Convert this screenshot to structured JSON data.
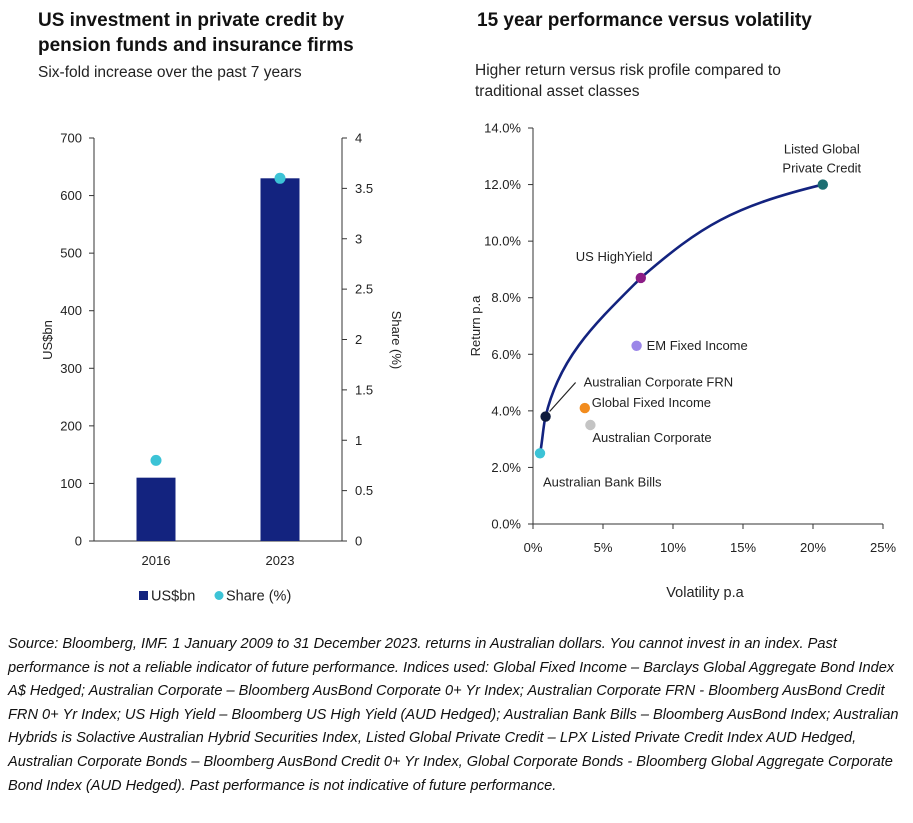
{
  "left_panel": {
    "title_line1": "US investment in private credit by",
    "title_line2": "pension funds and insurance firms",
    "subtitle": "Six-fold increase over the past 7 years"
  },
  "right_panel": {
    "title": "15 year performance versus volatility",
    "subtitle_line1": "Higher return versus risk profile compared to",
    "subtitle_line2": "traditional asset classes"
  },
  "footnote": "Source: Bloomberg, IMF. 1 January 2009 to 31 December 2023. returns in Australian dollars. You cannot invest in an index. Past performance is not a reliable indicator of future performance. Indices used: Global Fixed Income – Barclays Global Aggregate Bond Index A$ Hedged; Australian Corporate – Bloomberg AusBond Corporate 0+ Yr Index; Australian Corporate FRN - Bloomberg AusBond Credit FRN 0+ Yr Index; US High Yield – Bloomberg US High Yield (AUD Hedged); Australian Bank Bills – Bloomberg AusBond Index; Australian Hybrids is Solactive Australian Hybrid Securities Index, Listed Global Private Credit – LPX Listed Private Credit Index AUD Hedged, Australian Corporate Bonds – Bloomberg AusBond Credit 0+ Yr Index, Global Corporate Bonds - Bloomberg Global Aggregate Corporate Bond Index (AUD Hedged). Past performance is not indicative of future performance.",
  "chart_data": [
    {
      "type": "bar",
      "categories": [
        "2016",
        "2023"
      ],
      "series": [
        {
          "name": "US$bn",
          "kind": "bar",
          "axis": "left",
          "values": [
            110,
            630
          ],
          "color": "#13237f"
        },
        {
          "name": "Share (%)",
          "kind": "marker",
          "axis": "right",
          "values": [
            0.8,
            3.6
          ],
          "color": "#3cc3d6"
        }
      ],
      "ylabel": "US$bn",
      "ylabel_right": "Share (%)",
      "ylim": [
        0,
        700
      ],
      "ylim_right": [
        0,
        4
      ],
      "yticks": [
        "0",
        "100",
        "200",
        "300",
        "400",
        "500",
        "600",
        "700"
      ],
      "yticks_right": [
        "0",
        "0.5",
        "1",
        "1.5",
        "2",
        "2.5",
        "3",
        "3.5",
        "4"
      ],
      "legend_position": "bottom",
      "grid": false
    },
    {
      "type": "scatter",
      "xlabel": "Volatility p.a",
      "ylabel": "Return p.a",
      "xlim": [
        0,
        25
      ],
      "ylim": [
        0,
        14
      ],
      "xticks": [
        "0%",
        "5%",
        "10%",
        "15%",
        "20%",
        "25%"
      ],
      "yticks": [
        "0.0%",
        "2.0%",
        "4.0%",
        "6.0%",
        "8.0%",
        "10.0%",
        "12.0%",
        "14.0%"
      ],
      "grid": false,
      "points": [
        {
          "label": "Australian Bank Bills",
          "x": 0.5,
          "y": 2.5,
          "color": "#3cc3d6"
        },
        {
          "label": "Australian Corporate FRN",
          "x": 0.9,
          "y": 3.8,
          "color": "#0e1b3d"
        },
        {
          "label": "Global Fixed Income",
          "x": 3.7,
          "y": 4.1,
          "color": "#f28c1e"
        },
        {
          "label": "Australian Corporate",
          "x": 4.1,
          "y": 3.5,
          "color": "#c4c4c4"
        },
        {
          "label": "EM Fixed Income",
          "x": 7.4,
          "y": 6.3,
          "color": "#9b86e8"
        },
        {
          "label": "US HighYield",
          "x": 7.7,
          "y": 8.7,
          "color": "#8c1d86"
        },
        {
          "label": "Listed Global Private Credit",
          "x": 20.7,
          "y": 12.0,
          "color": "#1c6e72"
        }
      ],
      "frontier_line": {
        "color": "#13237f",
        "passes_through": [
          "Australian Bank Bills",
          "Australian Corporate FRN",
          "US HighYield",
          "Listed Global Private Credit"
        ]
      }
    }
  ]
}
